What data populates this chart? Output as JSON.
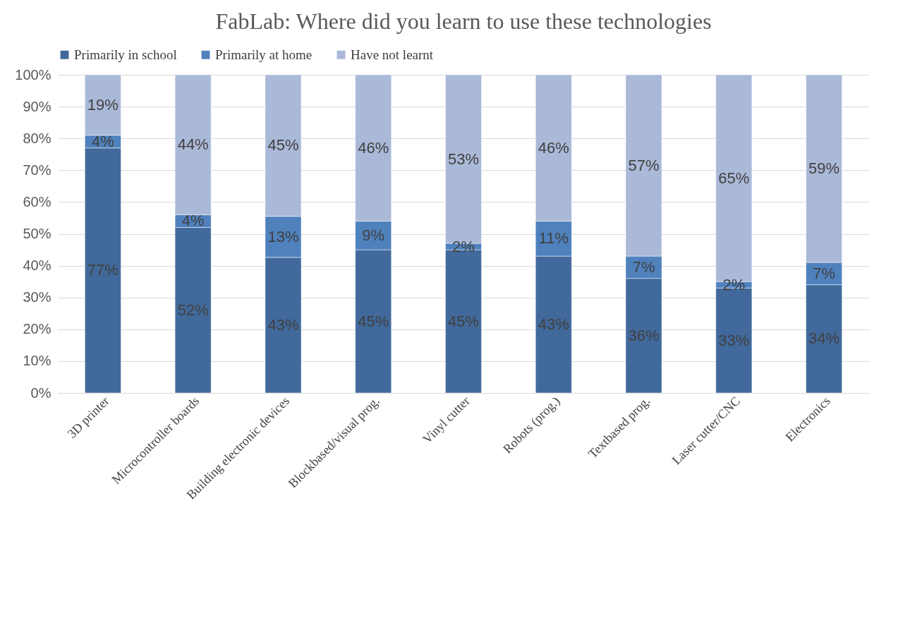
{
  "chart_data": {
    "type": "bar",
    "title": "FabLab: Where did you learn to use these technologies",
    "categories": [
      "3D printer",
      "Microcontroller boards",
      "Building electronic devices",
      "Blockbased/visual prog.",
      "Vinyl cutter",
      "Robots (prog.)",
      "Textbased prog.",
      "Laser cutter/CNC",
      "Electronics"
    ],
    "stacked": true,
    "series": [
      {
        "name": "Primarily in school",
        "color": "#41699b",
        "values": [
          77,
          52,
          42.6,
          45,
          45,
          43,
          36,
          33,
          34
        ],
        "value_labels": [
          "77%",
          "52%",
          "43%",
          "45%",
          "45%",
          "43%",
          "36%",
          "33%",
          "34%"
        ]
      },
      {
        "name": "Primarily at home",
        "color": "#4f81bd",
        "values": [
          4,
          4,
          12.9,
          9,
          2,
          11,
          7,
          2,
          7
        ],
        "value_labels": [
          "4%",
          "4%",
          "13%",
          "9%",
          "2%",
          "11%",
          "7%",
          "2%",
          "7%"
        ]
      },
      {
        "name": "Have not learnt",
        "color": "#abb9d8",
        "values": [
          19,
          44,
          44.5,
          46,
          53,
          46,
          57,
          65,
          59
        ],
        "value_labels": [
          "19%",
          "44%",
          "45%",
          "46%",
          "53%",
          "46%",
          "57%",
          "65%",
          "59%"
        ]
      }
    ],
    "ylim": [
      0,
      100
    ],
    "yticks": [
      {
        "value": 0,
        "label": "0%"
      },
      {
        "value": 10,
        "label": "10%"
      },
      {
        "value": 20,
        "label": "20%"
      },
      {
        "value": 30,
        "label": "30%"
      },
      {
        "value": 40,
        "label": "40%"
      },
      {
        "value": 50,
        "label": "50%"
      },
      {
        "value": 60,
        "label": "60%"
      },
      {
        "value": 70,
        "label": "70%"
      },
      {
        "value": 80,
        "label": "80%"
      },
      {
        "value": 90,
        "label": "90%"
      },
      {
        "value": 100,
        "label": "100%"
      }
    ],
    "grid": "y",
    "legend": "top"
  }
}
